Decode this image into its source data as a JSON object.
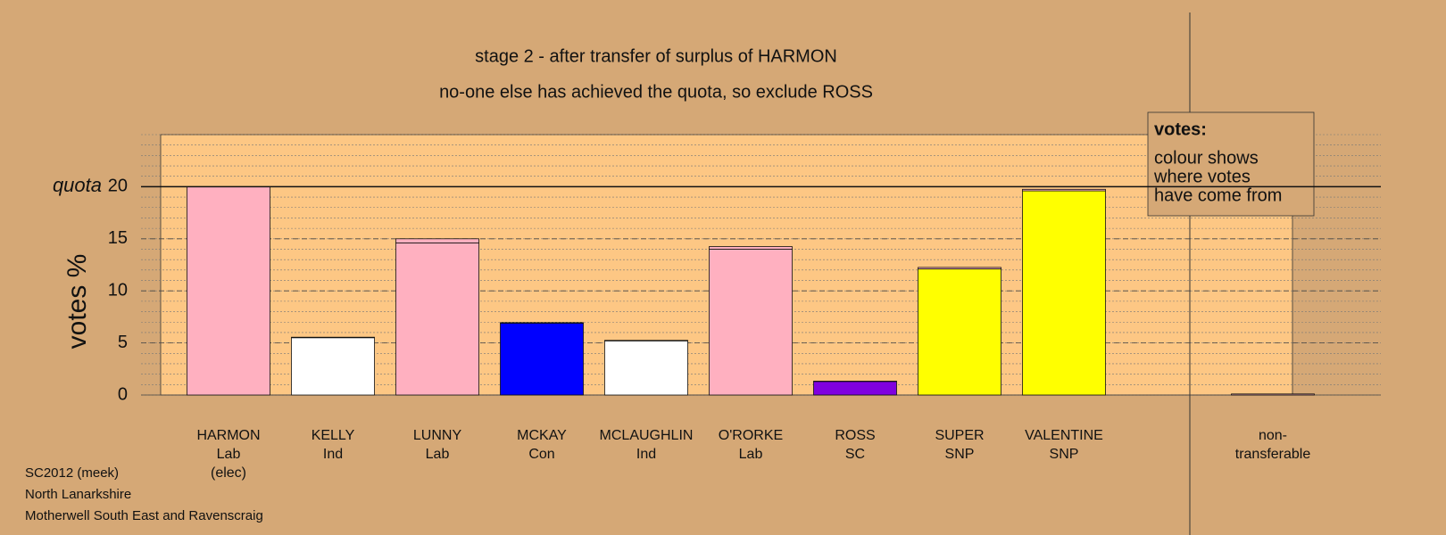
{
  "chart_data": {
    "type": "stacked-bar",
    "title": "stage 2 - after transfer of surplus of HARMON",
    "subtitle": "no-one else has achieved the quota, so exclude ROSS",
    "y_label": "votes %",
    "categories": [
      "HARMON",
      "KELLY",
      "LUNNY",
      "MCKAY",
      "MCLAUGHLIN",
      "O'RORKE",
      "ROSS",
      "SUPER",
      "VALENTINE",
      "non-"
    ],
    "parties": [
      "Lab",
      "Ind",
      "Lab",
      "Con",
      "Ind",
      "Lab",
      "SC",
      "SNP",
      "SNP",
      "transferable"
    ],
    "notes": [
      "(elec)",
      null,
      null,
      null,
      null,
      null,
      null,
      null,
      null,
      null
    ],
    "series": [
      {
        "colors": [
          "#ffb0c0",
          "#ffffff",
          "#ffb0c0",
          "#0000ff",
          "#ffffff",
          "#ffb0c0",
          "#8000e0",
          "#ffff00",
          "#ffff00",
          "#d5a876"
        ],
        "values": [
          20,
          5.5,
          14.6,
          6.9,
          5.2,
          14.0,
          1.3,
          12.1,
          19.6,
          0
        ]
      },
      {
        "color": "#ffb0c0",
        "values": [
          0,
          0.05,
          0.4,
          0.05,
          0.05,
          0.25,
          0.03,
          0.15,
          0.15,
          0.1
        ]
      }
    ],
    "quota": 20,
    "quota_label": "quota",
    "ylim": [
      0,
      25
    ],
    "yticks": [
      0,
      5,
      10,
      15,
      20
    ],
    "minor_grid_step": 1,
    "legend": {
      "title": "votes:",
      "lines": [
        "colour shows",
        "where votes",
        "have come from"
      ]
    },
    "footer": [
      "SC2012 (meek)",
      "North Lanarkshire",
      "Motherwell South East and Ravenscraig"
    ]
  }
}
